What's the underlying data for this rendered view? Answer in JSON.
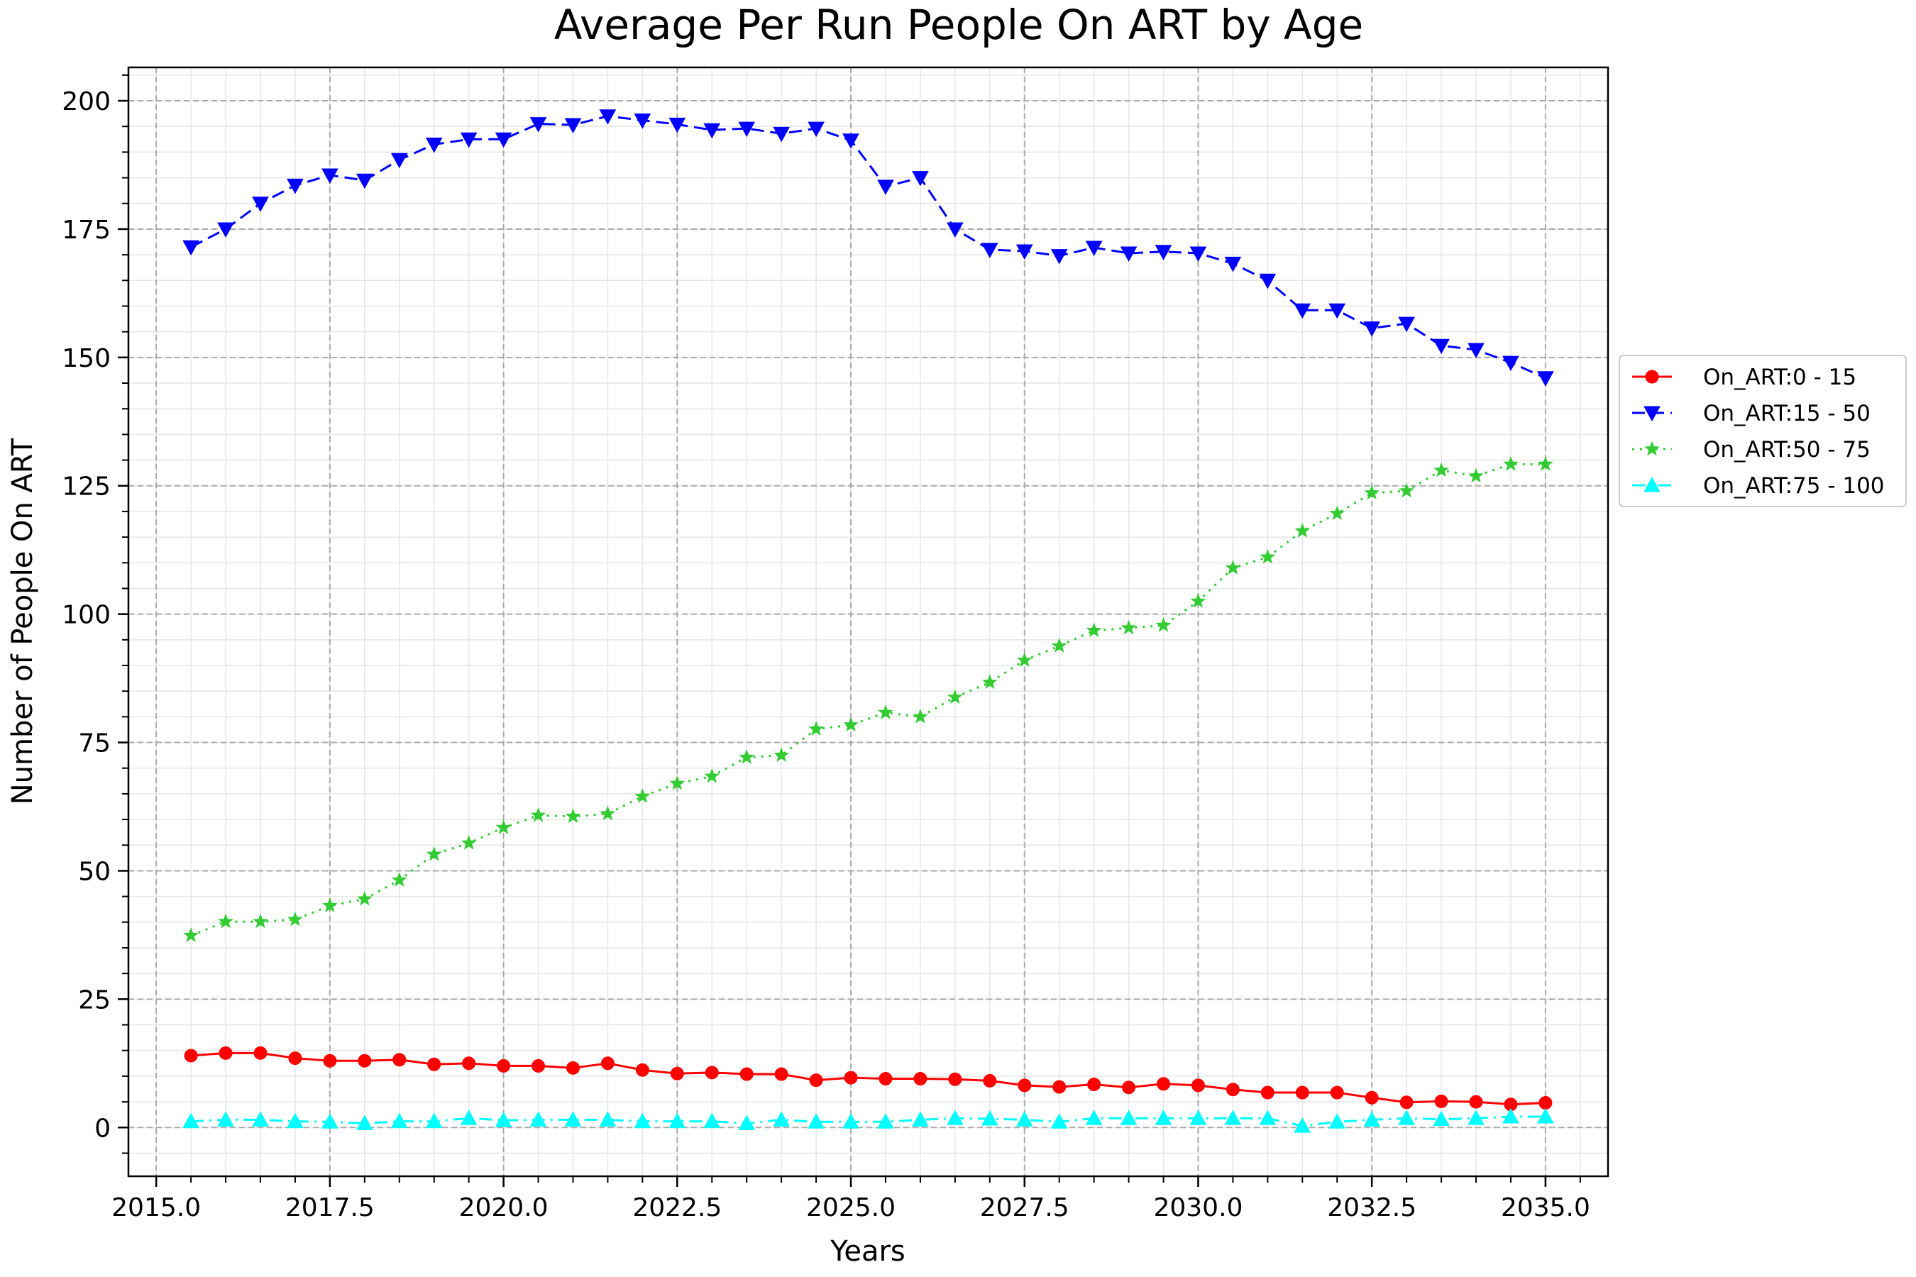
{
  "chart_data": {
    "type": "line",
    "title": "Average Per Run People On ART by Age",
    "xlabel": "Years",
    "ylabel": "Number of People On ART",
    "xlim": [
      2014.6,
      2035.9
    ],
    "ylim": [
      -9.5,
      206.5
    ],
    "xticks": [
      "2015.0",
      "2017.5",
      "2020.0",
      "2022.5",
      "2025.0",
      "2027.5",
      "2030.0",
      "2032.5",
      "2035.0"
    ],
    "yticks": [
      "0",
      "25",
      "50",
      "75",
      "100",
      "125",
      "150",
      "175",
      "200"
    ],
    "grid": true,
    "legend_position": "outside-right",
    "x": [
      2015.5,
      2016.0,
      2016.5,
      2017.0,
      2017.5,
      2018.0,
      2018.5,
      2019.0,
      2019.5,
      2020.0,
      2020.5,
      2021.0,
      2021.5,
      2022.0,
      2022.5,
      2023.0,
      2023.5,
      2024.0,
      2024.5,
      2025.0,
      2025.5,
      2026.0,
      2026.5,
      2027.0,
      2027.5,
      2028.0,
      2028.5,
      2029.0,
      2029.5,
      2030.0,
      2030.5,
      2031.0,
      2031.5,
      2032.0,
      2032.5,
      2033.0,
      2033.5,
      2034.0,
      2034.5,
      2035.0
    ],
    "series": [
      {
        "name": "On_ART:0 - 15",
        "color": "#ff0000",
        "marker": "circle",
        "dash": "solid",
        "values": [
          14.0,
          14.5,
          14.5,
          13.5,
          13.0,
          13.0,
          13.2,
          12.3,
          12.5,
          12.0,
          12.0,
          11.6,
          12.5,
          11.2,
          10.5,
          10.7,
          10.4,
          10.4,
          9.2,
          9.7,
          9.5,
          9.5,
          9.4,
          9.1,
          8.2,
          7.9,
          8.4,
          7.8,
          8.5,
          8.2,
          7.4,
          6.8,
          6.8,
          6.8,
          5.8,
          4.9,
          5.1,
          5.0,
          4.5,
          4.8
        ]
      },
      {
        "name": "On_ART:15 - 50",
        "color": "#0000ff",
        "marker": "triangle-down",
        "dash": "dashed",
        "values": [
          171.5,
          175.0,
          180.0,
          183.5,
          185.5,
          184.5,
          188.5,
          191.5,
          192.5,
          192.5,
          195.5,
          195.3,
          197.0,
          196.2,
          195.4,
          194.3,
          194.6,
          193.6,
          194.6,
          192.3,
          183.3,
          185.0,
          175.0,
          171.0,
          170.7,
          169.8,
          171.4,
          170.3,
          170.6,
          170.3,
          168.3,
          165.0,
          159.2,
          159.2,
          155.7,
          156.6,
          152.3,
          151.5,
          149.0,
          146.0
        ]
      },
      {
        "name": "On_ART:50 - 75",
        "color": "#33cc33",
        "marker": "star",
        "dash": "dotted",
        "values": [
          37.4,
          40.1,
          40.1,
          40.5,
          43.2,
          44.5,
          48.2,
          53.2,
          55.4,
          58.4,
          60.8,
          60.6,
          61.1,
          64.5,
          67.0,
          68.4,
          72.1,
          72.5,
          77.6,
          78.4,
          80.8,
          80.0,
          83.8,
          86.7,
          91.0,
          93.8,
          96.8,
          97.3,
          97.8,
          102.5,
          109.0,
          111.1,
          116.2,
          119.6,
          123.6,
          124.0,
          128.0,
          126.9,
          129.2,
          129.2
        ]
      },
      {
        "name": "On_ART:75 - 100",
        "color": "#00ffff",
        "marker": "triangle-up",
        "dash": "dashdot",
        "values": [
          1.2,
          1.5,
          1.5,
          1.2,
          1.1,
          0.8,
          1.2,
          1.2,
          1.8,
          1.4,
          1.5,
          1.5,
          1.5,
          1.2,
          1.2,
          1.2,
          0.8,
          1.5,
          1.1,
          1.1,
          1.1,
          1.5,
          1.8,
          1.7,
          1.5,
          1.1,
          1.8,
          1.8,
          1.8,
          1.8,
          1.8,
          1.8,
          0.3,
          1.1,
          1.5,
          1.8,
          1.6,
          1.8,
          2.1,
          2.1
        ]
      }
    ]
  }
}
